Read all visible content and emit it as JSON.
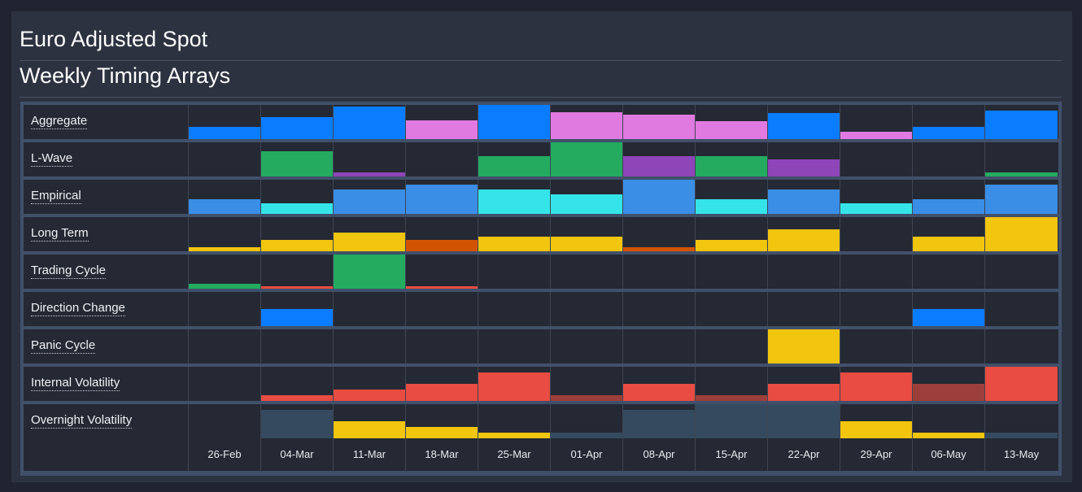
{
  "header": {
    "title": "Euro Adjusted Spot",
    "subtitle": "Weekly Timing Arrays"
  },
  "colors": {
    "blue": "#0a7cff",
    "pink": "#e07ae0",
    "green": "#24ab60",
    "purple": "#8e45b8",
    "lightblue": "#3a8ee6",
    "cyan": "#35e4e8",
    "yellow": "#f2c50f",
    "orange": "#d35400",
    "red": "#e84c42",
    "darkred": "#9c3f3b",
    "slate": "#354a5f"
  },
  "dates": [
    "26-Feb",
    "04-Mar",
    "11-Mar",
    "18-Mar",
    "25-Mar",
    "01-Apr",
    "08-Apr",
    "15-Apr",
    "22-Apr",
    "29-Apr",
    "06-May",
    "13-May"
  ],
  "rows": [
    {
      "label": "Aggregate",
      "cells": [
        {
          "level": 0.36,
          "color": "blue"
        },
        {
          "level": 0.64,
          "color": "blue"
        },
        {
          "level": 0.95,
          "color": "blue"
        },
        {
          "level": 0.55,
          "color": "pink"
        },
        {
          "level": 1.0,
          "color": "blue"
        },
        {
          "level": 0.79,
          "color": "pink"
        },
        {
          "level": 0.71,
          "color": "pink"
        },
        {
          "level": 0.52,
          "color": "pink"
        },
        {
          "level": 0.76,
          "color": "blue"
        },
        {
          "level": 0.21,
          "color": "pink"
        },
        {
          "level": 0.36,
          "color": "blue"
        },
        {
          "level": 0.83,
          "color": "blue"
        }
      ]
    },
    {
      "label": "L-Wave",
      "cells": [
        {
          "level": 0,
          "color": "green"
        },
        {
          "level": 0.74,
          "color": "green"
        },
        {
          "level": 0.12,
          "color": "purple"
        },
        {
          "level": 0,
          "color": "green"
        },
        {
          "level": 0.6,
          "color": "green"
        },
        {
          "level": 1.0,
          "color": "green"
        },
        {
          "level": 0.6,
          "color": "purple"
        },
        {
          "level": 0.6,
          "color": "green"
        },
        {
          "level": 0.5,
          "color": "purple"
        },
        {
          "level": 0,
          "color": "green"
        },
        {
          "level": 0,
          "color": "green"
        },
        {
          "level": 0.12,
          "color": "green"
        }
      ]
    },
    {
      "label": "Empirical",
      "cells": [
        {
          "level": 0.43,
          "color": "lightblue"
        },
        {
          "level": 0.31,
          "color": "cyan"
        },
        {
          "level": 0.71,
          "color": "lightblue"
        },
        {
          "level": 0.86,
          "color": "lightblue"
        },
        {
          "level": 0.71,
          "color": "cyan"
        },
        {
          "level": 0.57,
          "color": "cyan"
        },
        {
          "level": 1.0,
          "color": "lightblue"
        },
        {
          "level": 0.43,
          "color": "cyan"
        },
        {
          "level": 0.71,
          "color": "lightblue"
        },
        {
          "level": 0.31,
          "color": "cyan"
        },
        {
          "level": 0.43,
          "color": "lightblue"
        },
        {
          "level": 0.86,
          "color": "lightblue"
        }
      ]
    },
    {
      "label": "Long Term",
      "cells": [
        {
          "level": 0.12,
          "color": "yellow"
        },
        {
          "level": 0.33,
          "color": "yellow"
        },
        {
          "level": 0.55,
          "color": "yellow"
        },
        {
          "level": 0.33,
          "color": "orange"
        },
        {
          "level": 0.43,
          "color": "yellow"
        },
        {
          "level": 0.43,
          "color": "yellow"
        },
        {
          "level": 0.12,
          "color": "orange"
        },
        {
          "level": 0.33,
          "color": "yellow"
        },
        {
          "level": 0.64,
          "color": "yellow"
        },
        {
          "level": 0,
          "color": "yellow"
        },
        {
          "level": 0.43,
          "color": "yellow"
        },
        {
          "level": 1.0,
          "color": "yellow"
        }
      ]
    },
    {
      "label": "Trading Cycle",
      "cells": [
        {
          "level": 0.14,
          "color": "green"
        },
        {
          "level": 0.07,
          "color": "red"
        },
        {
          "level": 1.0,
          "color": "green"
        },
        {
          "level": 0.07,
          "color": "red"
        },
        {
          "level": 0,
          "color": "green"
        },
        {
          "level": 0,
          "color": "green"
        },
        {
          "level": 0,
          "color": "green"
        },
        {
          "level": 0,
          "color": "green"
        },
        {
          "level": 0,
          "color": "green"
        },
        {
          "level": 0,
          "color": "green"
        },
        {
          "level": 0,
          "color": "green"
        },
        {
          "level": 0,
          "color": "green"
        }
      ]
    },
    {
      "label": "Direction Change",
      "cells": [
        {
          "level": 0,
          "color": "blue"
        },
        {
          "level": 0.5,
          "color": "blue"
        },
        {
          "level": 0,
          "color": "blue"
        },
        {
          "level": 0,
          "color": "blue"
        },
        {
          "level": 0,
          "color": "blue"
        },
        {
          "level": 0,
          "color": "blue"
        },
        {
          "level": 0,
          "color": "blue"
        },
        {
          "level": 0,
          "color": "blue"
        },
        {
          "level": 0,
          "color": "blue"
        },
        {
          "level": 0,
          "color": "blue"
        },
        {
          "level": 0.5,
          "color": "blue"
        },
        {
          "level": 0,
          "color": "blue"
        }
      ]
    },
    {
      "label": "Panic Cycle",
      "cells": [
        {
          "level": 0,
          "color": "yellow"
        },
        {
          "level": 0,
          "color": "yellow"
        },
        {
          "level": 0,
          "color": "yellow"
        },
        {
          "level": 0,
          "color": "yellow"
        },
        {
          "level": 0,
          "color": "yellow"
        },
        {
          "level": 0,
          "color": "yellow"
        },
        {
          "level": 0,
          "color": "yellow"
        },
        {
          "level": 0,
          "color": "yellow"
        },
        {
          "level": 1.0,
          "color": "yellow"
        },
        {
          "level": 0,
          "color": "yellow"
        },
        {
          "level": 0,
          "color": "yellow"
        },
        {
          "level": 0,
          "color": "yellow"
        }
      ]
    },
    {
      "label": "Internal Volatility",
      "cells": [
        {
          "level": 0,
          "color": "red"
        },
        {
          "level": 0.17,
          "color": "red"
        },
        {
          "level": 0.33,
          "color": "red"
        },
        {
          "level": 0.5,
          "color": "red"
        },
        {
          "level": 0.83,
          "color": "red"
        },
        {
          "level": 0.17,
          "color": "darkred"
        },
        {
          "level": 0.5,
          "color": "red"
        },
        {
          "level": 0.17,
          "color": "darkred"
        },
        {
          "level": 0.5,
          "color": "red"
        },
        {
          "level": 0.83,
          "color": "red"
        },
        {
          "level": 0.5,
          "color": "darkred"
        },
        {
          "level": 1.0,
          "color": "red"
        }
      ]
    },
    {
      "label": "Overnight Volatility",
      "cells": [
        {
          "level": 0,
          "color": "slate"
        },
        {
          "level": 0.83,
          "color": "slate"
        },
        {
          "level": 0.5,
          "color": "yellow"
        },
        {
          "level": 0.33,
          "color": "yellow"
        },
        {
          "level": 0.17,
          "color": "yellow"
        },
        {
          "level": 0.17,
          "color": "slate"
        },
        {
          "level": 0.83,
          "color": "slate"
        },
        {
          "level": 1.0,
          "color": "slate"
        },
        {
          "level": 1.0,
          "color": "slate"
        },
        {
          "level": 0.5,
          "color": "yellow"
        },
        {
          "level": 0.17,
          "color": "yellow"
        },
        {
          "level": 0.17,
          "color": "slate"
        }
      ]
    }
  ]
}
